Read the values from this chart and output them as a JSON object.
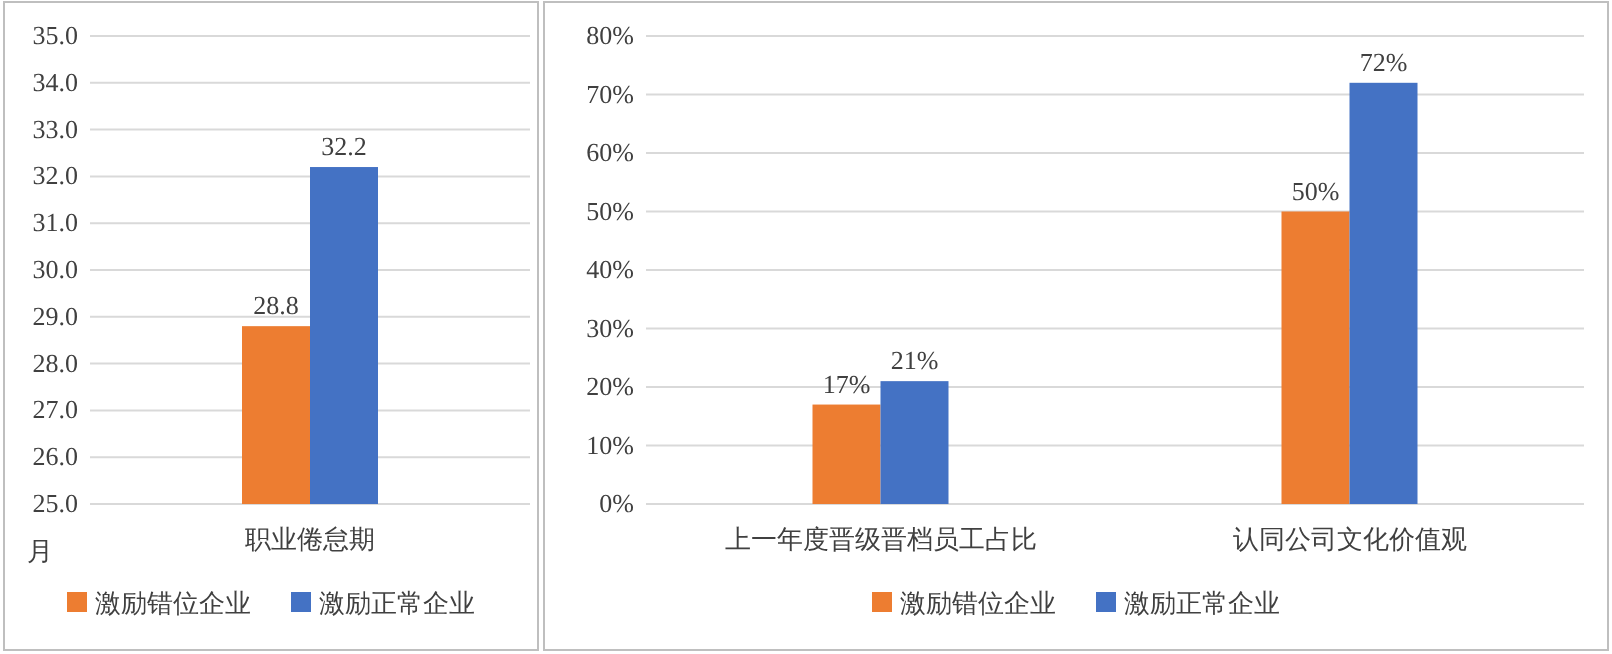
{
  "chart_data": [
    {
      "type": "bar",
      "categories": [
        "职业倦怠期"
      ],
      "ylabel": "月",
      "series": [
        {
          "name": "激励错位企业",
          "color": "#ed7d31",
          "values": [
            28.8
          ]
        },
        {
          "name": "激励正常企业",
          "color": "#4472c4",
          "values": [
            32.2
          ]
        }
      ],
      "ylim": [
        25,
        35
      ],
      "yticks": [
        {
          "value": 25,
          "label": "25.0"
        },
        {
          "value": 26,
          "label": "26.0"
        },
        {
          "value": 27,
          "label": "27.0"
        },
        {
          "value": 28,
          "label": "28.0"
        },
        {
          "value": 29,
          "label": "29.0"
        },
        {
          "value": 30,
          "label": "30.0"
        },
        {
          "value": 31,
          "label": "31.0"
        },
        {
          "value": 32,
          "label": "32.0"
        },
        {
          "value": 33,
          "label": "33.0"
        },
        {
          "value": 34,
          "label": "34.0"
        },
        {
          "value": 35,
          "label": "35.0"
        }
      ],
      "grid": "y",
      "legend": "bottom",
      "data_labels": true
    },
    {
      "type": "bar",
      "categories": [
        "上一年度晋级晋档员工占比",
        "认同公司文化价值观"
      ],
      "series": [
        {
          "name": "激励错位企业",
          "color": "#ed7d31",
          "values": [
            17,
            50
          ],
          "value_labels": [
            "17%",
            "50%"
          ]
        },
        {
          "name": "激励正常企业",
          "color": "#4472c4",
          "values": [
            21,
            72
          ],
          "value_labels": [
            "21%",
            "72%"
          ]
        }
      ],
      "ylim": [
        0,
        80
      ],
      "yticks": [
        {
          "value": 0,
          "label": "0%"
        },
        {
          "value": 10,
          "label": "10%"
        },
        {
          "value": 20,
          "label": "20%"
        },
        {
          "value": 30,
          "label": "30%"
        },
        {
          "value": 40,
          "label": "40%"
        },
        {
          "value": 50,
          "label": "50%"
        },
        {
          "value": 60,
          "label": "60%"
        },
        {
          "value": 70,
          "label": "70%"
        },
        {
          "value": 80,
          "label": "80%"
        }
      ],
      "grid": "y",
      "legend": "bottom"
    }
  ]
}
